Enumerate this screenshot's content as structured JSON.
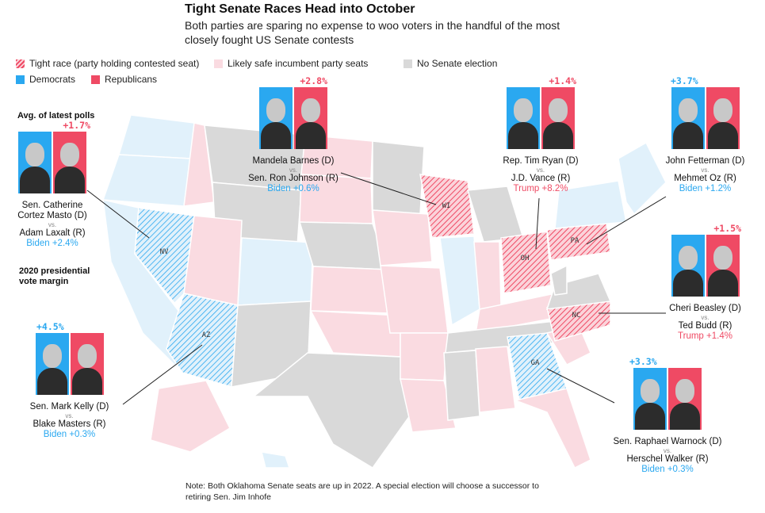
{
  "header": {
    "title": "Tight Senate Races Head into October",
    "subtitle": "Both parties are sparing no expense to woo voters in the handful of the most closely fought US Senate contests"
  },
  "legend": {
    "tight": "Tight race (party holding contested seat)",
    "safe": "Likely safe incumbent party seats",
    "none": "No Senate election",
    "dem": "Democrats",
    "rep": "Republicans"
  },
  "colors": {
    "democrat": "#2aa8f0",
    "republican": "#ef4a64",
    "dem_safe": "#e1f1fb",
    "rep_safe": "#fadbe1",
    "no_election": "#d9d9d9"
  },
  "labels": {
    "avg_polls": "Avg. of latest polls",
    "pres_margin": "2020 presidential vote margin"
  },
  "states": {
    "nv": "NV",
    "az": "AZ",
    "wi": "WI",
    "oh": "OH",
    "pa": "PA",
    "nc": "NC",
    "ga": "GA"
  },
  "races": {
    "nv": {
      "poll": "+1.7%",
      "d": "Sen. Catherine Cortez Masto (D)",
      "vs": "vs.",
      "r": "Adam Laxalt (R)",
      "pres": "Biden +2.4%"
    },
    "wi": {
      "poll": "+2.8%",
      "d": "Mandela Barnes (D)",
      "vs": "vs.",
      "r": "Sen. Ron Johnson (R)",
      "pres": "Biden +0.6%"
    },
    "oh": {
      "poll": "+1.4%",
      "d": "Rep. Tim Ryan (D)",
      "vs": "vs.",
      "r": "J.D. Vance (R)",
      "pres": "Trump +8.2%"
    },
    "pa": {
      "poll": "+3.7%",
      "d": "John Fetterman (D)",
      "vs": "vs.",
      "r": "Mehmet Oz (R)",
      "pres": "Biden +1.2%"
    },
    "nc": {
      "poll": "+1.5%",
      "d": "Cheri Beasley (D)",
      "vs": "vs.",
      "r": "Ted Budd (R)",
      "pres": "Trump +1.4%"
    },
    "az": {
      "poll": "+4.5%",
      "d": "Sen. Mark Kelly (D)",
      "vs": "vs.",
      "r": "Blake Masters (R)",
      "pres": "Biden +0.3%"
    },
    "ga": {
      "poll": "+3.3%",
      "d": "Sen. Raphael Warnock (D)",
      "vs": "vs.",
      "r": "Herschel Walker (R)",
      "pres": "Biden +0.3%"
    }
  },
  "footnote": "Note: Both Oklahoma Senate seats are up in 2022. A special election will choose a successor to retiring Sen. Jim Inhofe"
}
